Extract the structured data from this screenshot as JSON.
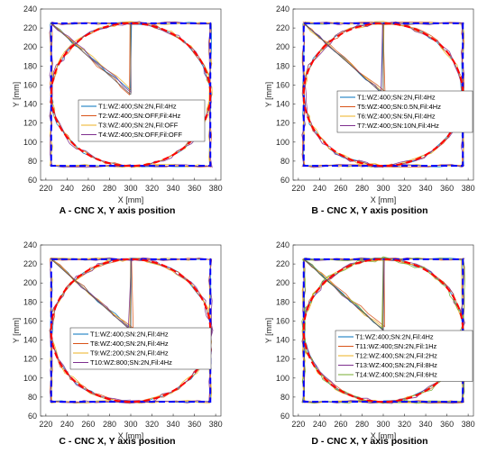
{
  "chart_data": [
    {
      "type": "line",
      "caption": "A - CNC X, Y axis position",
      "xlabel": "X [mm]",
      "ylabel": "Y [mm]",
      "xlim": [
        215,
        385
      ],
      "ylim": [
        60,
        240
      ],
      "xticks": [
        220,
        240,
        260,
        280,
        300,
        320,
        340,
        360,
        380
      ],
      "yticks": [
        60,
        80,
        100,
        120,
        140,
        160,
        180,
        200,
        220,
        240
      ],
      "grid": false,
      "legend_position": "center",
      "reference": {
        "square": {
          "x": [
            225,
            375
          ],
          "y": [
            75,
            225
          ]
        },
        "circle": {
          "center": [
            300,
            150
          ],
          "radius": 75
        }
      },
      "series": [
        {
          "name": "T1:WZ:400;SN:2N,Fil:4Hz",
          "color": "#0072BD"
        },
        {
          "name": "T2:WZ:400;SN:OFF,Fil:4Hz",
          "color": "#D95319"
        },
        {
          "name": "T3:WZ:400;SN:2N,Fil:OFF",
          "color": "#EDB120"
        },
        {
          "name": "T4:WZ:400;SN:OFF,Fil:OFF",
          "color": "#7E2F8E"
        }
      ]
    },
    {
      "type": "line",
      "caption": "B - CNC X, Y axis position",
      "xlabel": "X [mm]",
      "ylabel": "Y [mm]",
      "xlim": [
        215,
        385
      ],
      "ylim": [
        60,
        240
      ],
      "xticks": [
        220,
        240,
        260,
        280,
        300,
        320,
        340,
        360,
        380
      ],
      "yticks": [
        60,
        80,
        100,
        120,
        140,
        160,
        180,
        200,
        220,
        240
      ],
      "grid": false,
      "legend_position": "center",
      "reference": {
        "square": {
          "x": [
            225,
            375
          ],
          "y": [
            75,
            225
          ]
        },
        "circle": {
          "center": [
            300,
            150
          ],
          "radius": 75
        }
      },
      "series": [
        {
          "name": "T1:WZ:400;SN:2N,Fil:4Hz",
          "color": "#0072BD"
        },
        {
          "name": "T5:WZ:400;SN:0.5N,Fil:4Hz",
          "color": "#D95319"
        },
        {
          "name": "T6:WZ:400;SN:5N,Fil:4Hz",
          "color": "#EDB120"
        },
        {
          "name": "T7:WZ:400;SN:10N,Fil:4Hz",
          "color": "#7E2F8E"
        }
      ]
    },
    {
      "type": "line",
      "caption": "C - CNC X, Y axis position",
      "xlabel": "X [mm]",
      "ylabel": "Y [mm]",
      "xlim": [
        215,
        385
      ],
      "ylim": [
        60,
        240
      ],
      "xticks": [
        220,
        240,
        260,
        280,
        300,
        320,
        340,
        360,
        380
      ],
      "yticks": [
        60,
        80,
        100,
        120,
        140,
        160,
        180,
        200,
        220,
        240
      ],
      "grid": false,
      "legend_position": "center",
      "reference": {
        "square": {
          "x": [
            225,
            375
          ],
          "y": [
            75,
            225
          ]
        },
        "circle": {
          "center": [
            300,
            150
          ],
          "radius": 75
        }
      },
      "series": [
        {
          "name": "T1:WZ:400;SN:2N,Fil:4Hz",
          "color": "#0072BD"
        },
        {
          "name": "T8:WZ:400;SN:2N,Fil:4Hz",
          "color": "#D95319"
        },
        {
          "name": "T9:WZ:200;SN:2N,Fil:4Hz",
          "color": "#EDB120"
        },
        {
          "name": "T10:WZ:800;SN:2N,Fil:4Hz",
          "color": "#7E2F8E"
        }
      ]
    },
    {
      "type": "line",
      "caption": "D - CNC X, Y axis position",
      "xlabel": "X [mm]",
      "ylabel": "Y [mm]",
      "xlim": [
        215,
        385
      ],
      "ylim": [
        60,
        240
      ],
      "xticks": [
        220,
        240,
        260,
        280,
        300,
        320,
        340,
        360,
        380
      ],
      "yticks": [
        60,
        80,
        100,
        120,
        140,
        160,
        180,
        200,
        220,
        240
      ],
      "grid": false,
      "legend_position": "center",
      "reference": {
        "square": {
          "x": [
            225,
            375
          ],
          "y": [
            75,
            225
          ]
        },
        "circle": {
          "center": [
            300,
            150
          ],
          "radius": 75
        }
      },
      "series": [
        {
          "name": "T1:WZ:400;SN:2N,Fil:4Hz",
          "color": "#0072BD"
        },
        {
          "name": "T11:WZ:400;SN:2N,Fil:1Hz",
          "color": "#D95319"
        },
        {
          "name": "T12:WZ:400;SN:2N,Fil:2Hz",
          "color": "#EDB120"
        },
        {
          "name": "T13:WZ:400;SN:2N,Fil:8Hz",
          "color": "#7E2F8E"
        },
        {
          "name": "T14:WZ:400;SN:2N,Fil:6Hz",
          "color": "#77AC30"
        }
      ]
    }
  ]
}
